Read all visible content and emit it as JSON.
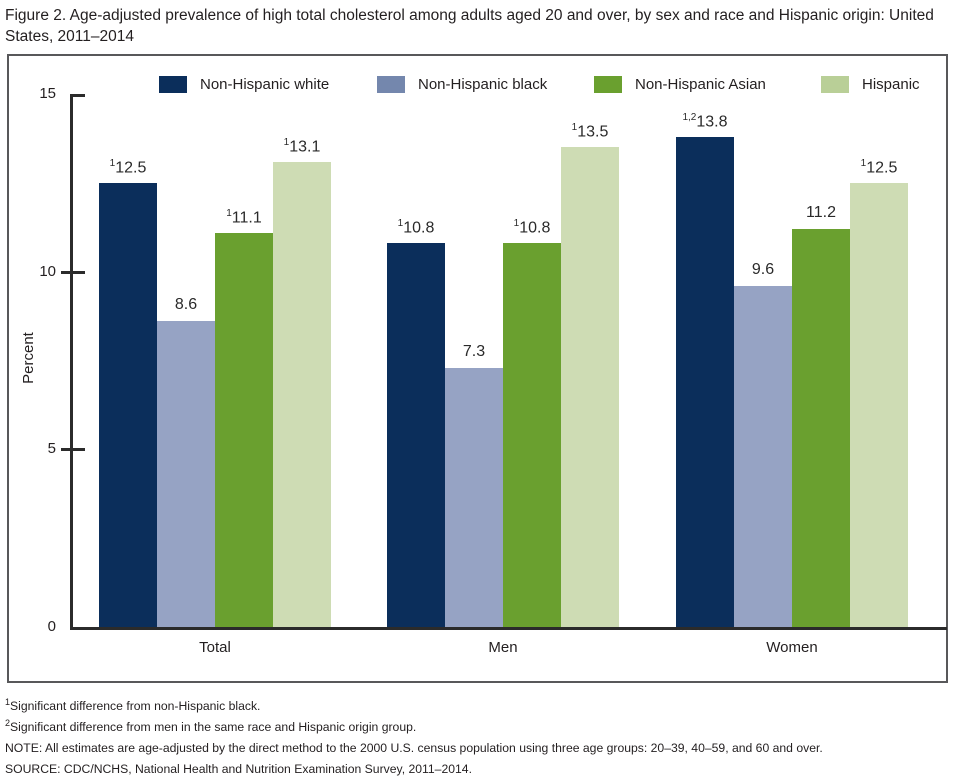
{
  "chart_data": {
    "type": "bar",
    "title": "Figure 2. Age-adjusted prevalence of high total cholesterol among adults aged 20 and over, by sex and race and Hispanic origin: United States, 2011–2014",
    "categories": [
      "Total",
      "Men",
      "Women"
    ],
    "series": [
      {
        "name": "Non-Hispanic white",
        "color": "#0b2e5b",
        "swatch_color": "#0b2e5b",
        "values": [
          12.5,
          10.8,
          13.8
        ],
        "superscripts": [
          "1",
          "1",
          "1,2"
        ]
      },
      {
        "name": "Non-Hispanic black",
        "color": "#96a3c4",
        "swatch_color": "#7487ad",
        "values": [
          8.6,
          7.3,
          9.6
        ],
        "superscripts": [
          "",
          "",
          ""
        ]
      },
      {
        "name": "Non-Hispanic Asian",
        "color": "#6aa02f",
        "swatch_color": "#6aa02f",
        "values": [
          11.1,
          10.8,
          11.2
        ],
        "superscripts": [
          "1",
          "1",
          ""
        ]
      },
      {
        "name": "Hispanic",
        "color": "#cedcb4",
        "swatch_color": "#b9cf97",
        "values": [
          13.1,
          13.5,
          12.5
        ],
        "superscripts": [
          "1",
          "1",
          "1"
        ]
      }
    ],
    "ylabel": "Percent",
    "yticks": [
      0,
      5,
      10,
      15
    ],
    "ylim": [
      0,
      15
    ],
    "legend_position": "top",
    "grid": false
  },
  "footnotes": [
    {
      "sup": "1",
      "text": "Significant difference from non-Hispanic black."
    },
    {
      "sup": "2",
      "text": "Significant difference from men in the same race and Hispanic origin group."
    },
    {
      "sup": "",
      "text": "NOTE: All estimates are age-adjusted by the direct method to the 2000 U.S. census population using three age groups: 20–39, 40–59, and 60 and over."
    },
    {
      "sup": "",
      "text": "SOURCE: CDC/NCHS, National Health and Nutrition Examination Survey, 2011–2014."
    }
  ]
}
